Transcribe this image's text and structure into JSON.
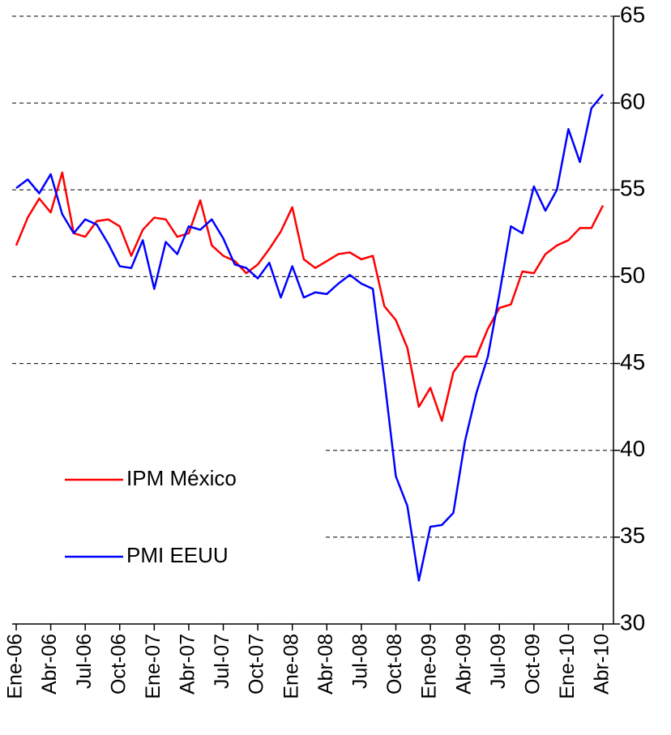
{
  "chart_data": {
    "type": "line",
    "categories": [
      "Ene-06",
      null,
      null,
      "Abr-06",
      null,
      null,
      "Jul-06",
      null,
      null,
      "Oct-06",
      null,
      null,
      "Ene-07",
      null,
      null,
      "Abr-07",
      null,
      null,
      "Jul-07",
      null,
      null,
      "Oct-07",
      null,
      null,
      "Ene-08",
      null,
      null,
      "Abr-08",
      null,
      null,
      "Jul-08",
      null,
      null,
      "Oct-08",
      null,
      null,
      "Ene-09",
      null,
      null,
      "Abr-09",
      null,
      null,
      "Jul-09",
      null,
      null,
      "Oct-09",
      null,
      null,
      "Ene-10",
      null,
      null,
      "Abr-10"
    ],
    "series": [
      {
        "name": "IPM México",
        "color": "#ff0000",
        "values": [
          51.8,
          53.4,
          54.5,
          53.7,
          56.0,
          52.5,
          52.3,
          53.2,
          53.3,
          52.9,
          51.2,
          52.7,
          53.4,
          53.3,
          52.3,
          52.5,
          54.4,
          51.8,
          51.2,
          50.9,
          50.2,
          50.7,
          51.6,
          52.6,
          54.0,
          51.0,
          50.5,
          50.9,
          51.3,
          51.4,
          51.0,
          51.2,
          48.3,
          47.5,
          45.9,
          42.5,
          43.6,
          41.7,
          44.5,
          45.4,
          45.4,
          47.0,
          48.2,
          48.4,
          50.3,
          50.2,
          51.3,
          51.8,
          52.1,
          52.8,
          52.8,
          54.1
        ]
      },
      {
        "name": "PMI EEUU",
        "color": "#0000ff",
        "values": [
          55.1,
          55.6,
          54.8,
          55.9,
          53.6,
          52.5,
          53.3,
          53.0,
          51.9,
          50.6,
          50.5,
          52.1,
          49.3,
          52.0,
          51.3,
          52.9,
          52.7,
          53.3,
          52.2,
          50.7,
          50.5,
          49.9,
          50.8,
          48.8,
          50.6,
          48.8,
          49.1,
          49.0,
          49.6,
          50.1,
          49.6,
          49.3,
          44.1,
          38.5,
          36.8,
          32.5,
          35.6,
          35.7,
          36.4,
          40.5,
          43.3,
          45.4,
          49.0,
          52.9,
          52.5,
          55.2,
          53.8,
          55.0,
          58.5,
          56.6,
          59.7,
          60.5
        ]
      }
    ],
    "ylim": [
      30,
      65
    ],
    "yticks": [
      30,
      35,
      40,
      45,
      50,
      55,
      60,
      65
    ],
    "grid": true,
    "y_axis_side": "right"
  }
}
